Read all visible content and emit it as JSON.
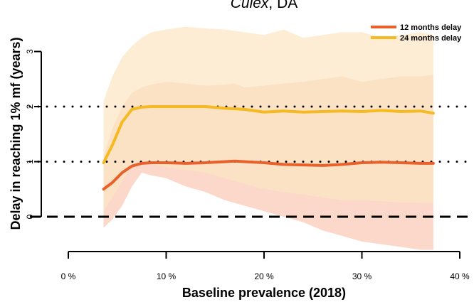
{
  "chart_data": {
    "type": "line",
    "title_italic": "Culex",
    "title_rest": ", DA",
    "xlabel": "Baseline prevalence (2018)",
    "ylabel": "Delay in reaching 1% mf (years)",
    "x_unit": "%",
    "xlim": [
      0,
      40
    ],
    "ylim": [
      -0.65,
      3.6
    ],
    "x_ticks": [
      0,
      10,
      20,
      30,
      40
    ],
    "x_tick_labels": [
      "0 %",
      "10 %",
      "20 %",
      "30 %",
      "40 %"
    ],
    "y_ticks": [
      0,
      1,
      2,
      3
    ],
    "y_tick_labels": [
      "0",
      "1",
      "2",
      "3"
    ],
    "reference_lines": [
      {
        "y": 0,
        "style": "dashed"
      },
      {
        "y": 1,
        "style": "dotted"
      },
      {
        "y": 2,
        "style": "dotted"
      }
    ],
    "legend_position": "top-right",
    "series": [
      {
        "name": "12 months delay",
        "color": "#e8602c",
        "band_color": "#f9c9b4",
        "x": [
          3.6,
          4.5,
          5.5,
          6.5,
          7.5,
          8.5,
          10,
          12,
          14,
          16,
          17,
          18,
          20,
          22,
          24,
          26,
          28,
          30,
          32,
          34,
          36,
          37.3
        ],
        "y": [
          0.5,
          0.62,
          0.8,
          0.92,
          0.97,
          0.98,
          0.98,
          0.97,
          0.98,
          1.0,
          1.01,
          1.0,
          0.98,
          0.95,
          0.94,
          0.93,
          0.95,
          0.98,
          0.99,
          0.98,
          0.97,
          0.97
        ],
        "lower": [
          -0.2,
          -0.05,
          0.2,
          0.55,
          0.8,
          0.75,
          0.7,
          0.55,
          0.45,
          0.3,
          0.25,
          0.2,
          0.1,
          0.0,
          -0.1,
          -0.25,
          -0.35,
          -0.45,
          -0.5,
          -0.55,
          -0.6,
          -0.6
        ],
        "upper": [
          1.1,
          1.6,
          2.0,
          2.25,
          2.35,
          2.4,
          2.45,
          2.42,
          2.38,
          2.4,
          2.42,
          2.35,
          2.38,
          2.42,
          2.45,
          2.5,
          2.55,
          2.45,
          2.5,
          2.55,
          2.55,
          2.58
        ]
      },
      {
        "name": "24 months delay",
        "color": "#f5b921",
        "band_color": "#fbe6c3",
        "x": [
          3.6,
          4.5,
          5.5,
          6.5,
          7.5,
          8.5,
          10,
          12,
          14,
          16,
          18,
          20,
          22,
          24,
          26,
          28,
          30,
          32,
          34,
          36,
          37.3
        ],
        "y": [
          0.98,
          1.3,
          1.72,
          1.95,
          1.99,
          2.0,
          2.0,
          2.0,
          2.0,
          1.97,
          1.95,
          1.9,
          1.92,
          1.9,
          1.91,
          1.92,
          1.91,
          1.93,
          1.91,
          1.92,
          1.88
        ],
        "lower": [
          0.1,
          0.35,
          0.65,
          0.9,
          0.98,
          0.95,
          0.9,
          0.85,
          0.8,
          0.7,
          0.6,
          0.5,
          0.45,
          0.4,
          0.35,
          0.3,
          0.3,
          0.28,
          0.26,
          0.25,
          0.25
        ],
        "upper": [
          2.1,
          2.55,
          2.9,
          3.1,
          3.25,
          3.35,
          3.4,
          3.45,
          3.42,
          3.4,
          3.35,
          3.3,
          3.4,
          3.25,
          3.3,
          3.35,
          3.35,
          3.25,
          3.3,
          3.35,
          3.3
        ]
      }
    ]
  }
}
